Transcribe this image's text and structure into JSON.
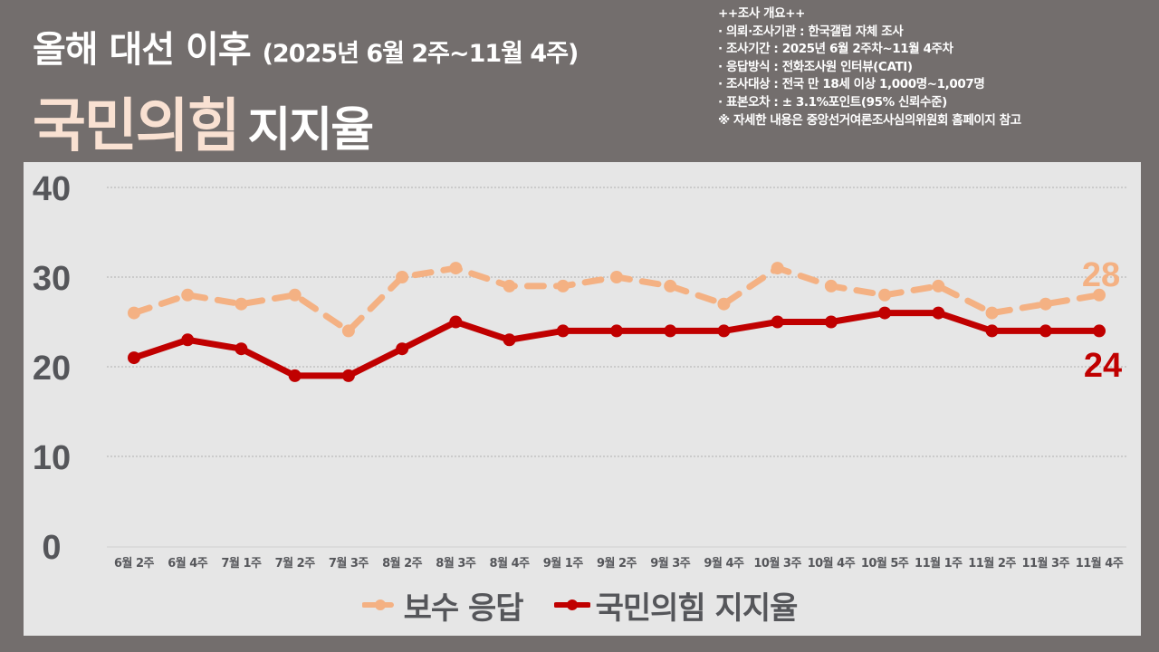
{
  "header": {
    "title_line1": "올해 대선 이후",
    "title_range": "(2025년 6월 2주~11월 4주)",
    "title_party": "국민의힘",
    "title_rest": "지지율"
  },
  "survey_info": {
    "heading": "++조사 개요++",
    "lines": [
      "· 의뢰·조사기관 : 한국갤럽 자체 조사",
      "· 조사기간 : 2025년 6월 2주차~11월 4주차",
      "· 응답방식 : 전화조사원 인터뷰(CATI)",
      "· 조사대상 : 전국 만 18세 이상 1,000명~1,007명",
      "· 표본오차 :  ± 3.1%포인트(95% 신뢰수준)"
    ],
    "note": "※ 자세한 내용은 중앙선거여론조사심의위원회 홈페이지 참고"
  },
  "colors": {
    "background": "#736e6d",
    "panel": "#e6e6e6",
    "title_accent": "#f9e1d2",
    "conservative": "#f4b183",
    "ppp": "#c00000",
    "axis_text": "#55565a",
    "grid": "#b0b0b0"
  },
  "chart_data": {
    "type": "line",
    "title": "올해 대선 이후 국민의힘 지지율",
    "xlabel": "",
    "ylabel": "",
    "ylim": [
      0,
      40
    ],
    "yticks": [
      0,
      10,
      20,
      30,
      40
    ],
    "grid": true,
    "legend_position": "bottom",
    "categories": [
      "6월 2주",
      "6월 4주",
      "7월 1주",
      "7월 2주",
      "7월 3주",
      "8월 2주",
      "8월 3주",
      "8월 4주",
      "9월 1주",
      "9월 2주",
      "9월 3주",
      "9월 4주",
      "10월 3주",
      "10월 4주",
      "10월 5주",
      "11월 1주",
      "11월 2주",
      "11월 3주",
      "11월 4주"
    ],
    "series": [
      {
        "name": "보수 응답",
        "style": "dashed",
        "color": "#f4b183",
        "values": [
          26,
          28,
          27,
          28,
          24,
          30,
          31,
          29,
          29,
          30,
          29,
          27,
          31,
          29,
          28,
          29,
          26,
          27,
          28
        ],
        "end_label": "28"
      },
      {
        "name": "국민의힘 지지율",
        "style": "solid",
        "color": "#c00000",
        "values": [
          21,
          23,
          22,
          19,
          19,
          22,
          25,
          23,
          24,
          24,
          24,
          24,
          25,
          25,
          26,
          26,
          24,
          24,
          24
        ],
        "end_label": "24"
      }
    ]
  },
  "legend": [
    {
      "label": "보수 응답",
      "icon": "dashed-line-marker-icon"
    },
    {
      "label": "국민의힘 지지율",
      "icon": "solid-line-marker-icon"
    }
  ]
}
